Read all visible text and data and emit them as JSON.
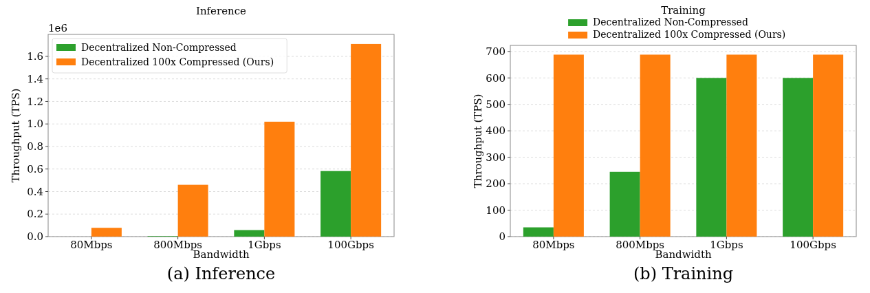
{
  "chart_data": [
    {
      "type": "bar",
      "title": "Inference",
      "xlabel": "Bandwidth",
      "ylabel": "Throughput (TPS)",
      "categories": [
        "80Mbps",
        "800Mbps",
        "1Gbps",
        "100Gbps"
      ],
      "series": [
        {
          "name": "Decentralized Non-Compressed",
          "color": "#2ca02c",
          "values": [
            0,
            0.005,
            0.058,
            0.582
          ]
        },
        {
          "name": "Decentralized 100x Compressed (Ours)",
          "color": "#ff7f0e",
          "values": [
            0.078,
            0.46,
            1.02,
            1.71
          ]
        }
      ],
      "ylim": [
        0,
        1.795
      ],
      "yticks": [
        {
          "value": 0,
          "label": "0.0"
        },
        0.2,
        0.4,
        0.6,
        0.8,
        {
          "value": 1,
          "label": "1.0"
        },
        1.2,
        1.4,
        1.6
      ],
      "grid": "y",
      "legend": "top left",
      "annotations": [
        "1e6",
        "(a) Inference"
      ]
    },
    {
      "type": "bar",
      "title": "Training",
      "xlabel": "Bandwidth",
      "ylabel": "Throughput (TPS)",
      "categories": [
        "80Mbps",
        "800Mbps",
        "1Gbps",
        "100Gbps"
      ],
      "series": [
        {
          "name": "Decentralized Non-Compressed",
          "color": "#2ca02c",
          "values": [
            35,
            245,
            600,
            600
          ]
        },
        {
          "name": "Decentralized 100x Compressed (Ours)",
          "color": "#ff7f0e",
          "values": [
            688,
            688,
            688,
            688
          ]
        }
      ],
      "ylim": [
        0,
        723
      ],
      "yticks": [
        0,
        100,
        200,
        300,
        400,
        500,
        600,
        700
      ],
      "grid": "y",
      "legend": "top",
      "annotations": [
        "(b) Training"
      ]
    }
  ]
}
